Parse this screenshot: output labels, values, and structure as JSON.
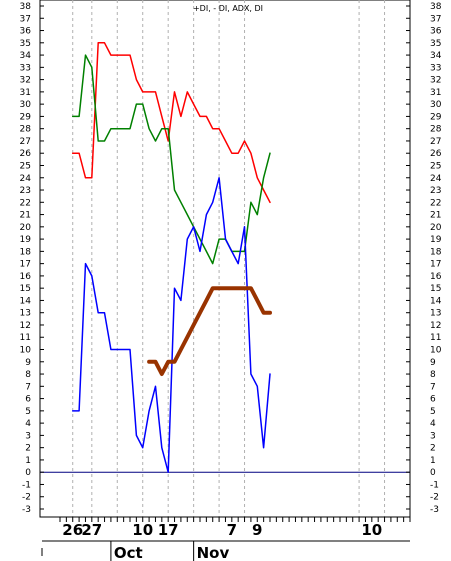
{
  "chart_data": {
    "type": "line",
    "title": "+DI, - DI, ADX, DI",
    "ylim": [
      -3,
      38
    ],
    "y_ticks": [
      -3,
      -2,
      -1,
      0,
      1,
      2,
      3,
      4,
      5,
      6,
      7,
      8,
      9,
      10,
      11,
      12,
      13,
      14,
      15,
      16,
      17,
      18,
      19,
      20,
      21,
      22,
      23,
      24,
      25,
      26,
      27,
      28,
      29,
      30,
      31,
      32,
      33,
      34,
      35,
      36,
      37,
      38
    ],
    "x_index_range": [
      0,
      55
    ],
    "x_day_labels": [
      {
        "label": "26",
        "x": 2
      },
      {
        "label": "27",
        "x": 5
      },
      {
        "label": "10",
        "x": 13
      },
      {
        "label": "17",
        "x": 17
      },
      {
        "label": "7",
        "x": 27
      },
      {
        "label": "9",
        "x": 31
      },
      {
        "label": "10",
        "x": 49
      }
    ],
    "x_month_labels": [
      {
        "label": "Oct",
        "x": 8
      },
      {
        "label": "Nov",
        "x": 21
      }
    ],
    "vgrid_x": [
      2,
      5,
      9,
      13,
      17,
      21,
      25,
      29,
      47,
      51
    ],
    "zero_line": 0,
    "series": [
      {
        "name": "-DI",
        "color": "#ff0000",
        "width": 1.5,
        "points": [
          [
            2,
            26
          ],
          [
            3,
            26
          ],
          [
            4,
            24
          ],
          [
            5,
            24
          ],
          [
            6,
            35
          ],
          [
            7,
            35
          ],
          [
            8,
            34
          ],
          [
            9,
            34
          ],
          [
            10,
            34
          ],
          [
            11,
            34
          ],
          [
            12,
            32
          ],
          [
            13,
            31
          ],
          [
            14,
            31
          ],
          [
            15,
            31
          ],
          [
            16,
            29
          ],
          [
            17,
            27
          ],
          [
            18,
            31
          ],
          [
            19,
            29
          ],
          [
            20,
            31
          ],
          [
            21,
            30
          ],
          [
            22,
            29
          ],
          [
            23,
            29
          ],
          [
            24,
            28
          ],
          [
            25,
            28
          ],
          [
            26,
            27
          ],
          [
            27,
            26
          ],
          [
            28,
            26
          ],
          [
            29,
            27
          ],
          [
            30,
            26
          ],
          [
            31,
            24
          ],
          [
            32,
            23
          ],
          [
            33,
            22
          ]
        ]
      },
      {
        "name": "+DI",
        "color": "#008000",
        "width": 1.5,
        "points": [
          [
            2,
            29
          ],
          [
            3,
            29
          ],
          [
            4,
            34
          ],
          [
            5,
            33
          ],
          [
            6,
            27
          ],
          [
            7,
            27
          ],
          [
            8,
            28
          ],
          [
            9,
            28
          ],
          [
            10,
            28
          ],
          [
            11,
            28
          ],
          [
            12,
            30
          ],
          [
            13,
            30
          ],
          [
            14,
            28
          ],
          [
            15,
            27
          ],
          [
            16,
            28
          ],
          [
            17,
            28
          ],
          [
            18,
            23
          ],
          [
            19,
            22
          ],
          [
            20,
            21
          ],
          [
            21,
            20
          ],
          [
            22,
            19
          ],
          [
            23,
            18
          ],
          [
            24,
            17
          ],
          [
            25,
            19
          ],
          [
            26,
            19
          ],
          [
            27,
            18
          ],
          [
            28,
            18
          ],
          [
            29,
            18
          ],
          [
            30,
            22
          ],
          [
            31,
            21
          ],
          [
            32,
            24
          ],
          [
            33,
            26
          ]
        ]
      },
      {
        "name": "DI",
        "color": "#0000ff",
        "width": 1.5,
        "points": [
          [
            2,
            5
          ],
          [
            3,
            5
          ],
          [
            4,
            17
          ],
          [
            5,
            16
          ],
          [
            6,
            13
          ],
          [
            7,
            13
          ],
          [
            8,
            10
          ],
          [
            9,
            10
          ],
          [
            10,
            10
          ],
          [
            11,
            10
          ],
          [
            12,
            3
          ],
          [
            13,
            2
          ],
          [
            14,
            5
          ],
          [
            15,
            7
          ],
          [
            16,
            2
          ],
          [
            17,
            0
          ],
          [
            18,
            15
          ],
          [
            19,
            14
          ],
          [
            20,
            19
          ],
          [
            21,
            20
          ],
          [
            22,
            18
          ],
          [
            23,
            21
          ],
          [
            24,
            22
          ],
          [
            25,
            24
          ],
          [
            26,
            19
          ],
          [
            27,
            18
          ],
          [
            28,
            17
          ],
          [
            29,
            20
          ],
          [
            30,
            8
          ],
          [
            31,
            7
          ],
          [
            32,
            2
          ],
          [
            33,
            8
          ]
        ]
      },
      {
        "name": "ADX",
        "color": "#993300",
        "width": 4,
        "points": [
          [
            14,
            9
          ],
          [
            15,
            9
          ],
          [
            16,
            8
          ],
          [
            17,
            9
          ],
          [
            18,
            9
          ],
          [
            19,
            10
          ],
          [
            20,
            11
          ],
          [
            21,
            12
          ],
          [
            22,
            13
          ],
          [
            23,
            14
          ],
          [
            24,
            15
          ],
          [
            25,
            15
          ],
          [
            26,
            15
          ],
          [
            27,
            15
          ],
          [
            28,
            15
          ],
          [
            29,
            15
          ],
          [
            30,
            15
          ],
          [
            31,
            14
          ],
          [
            32,
            13
          ],
          [
            33,
            13
          ]
        ]
      }
    ]
  }
}
